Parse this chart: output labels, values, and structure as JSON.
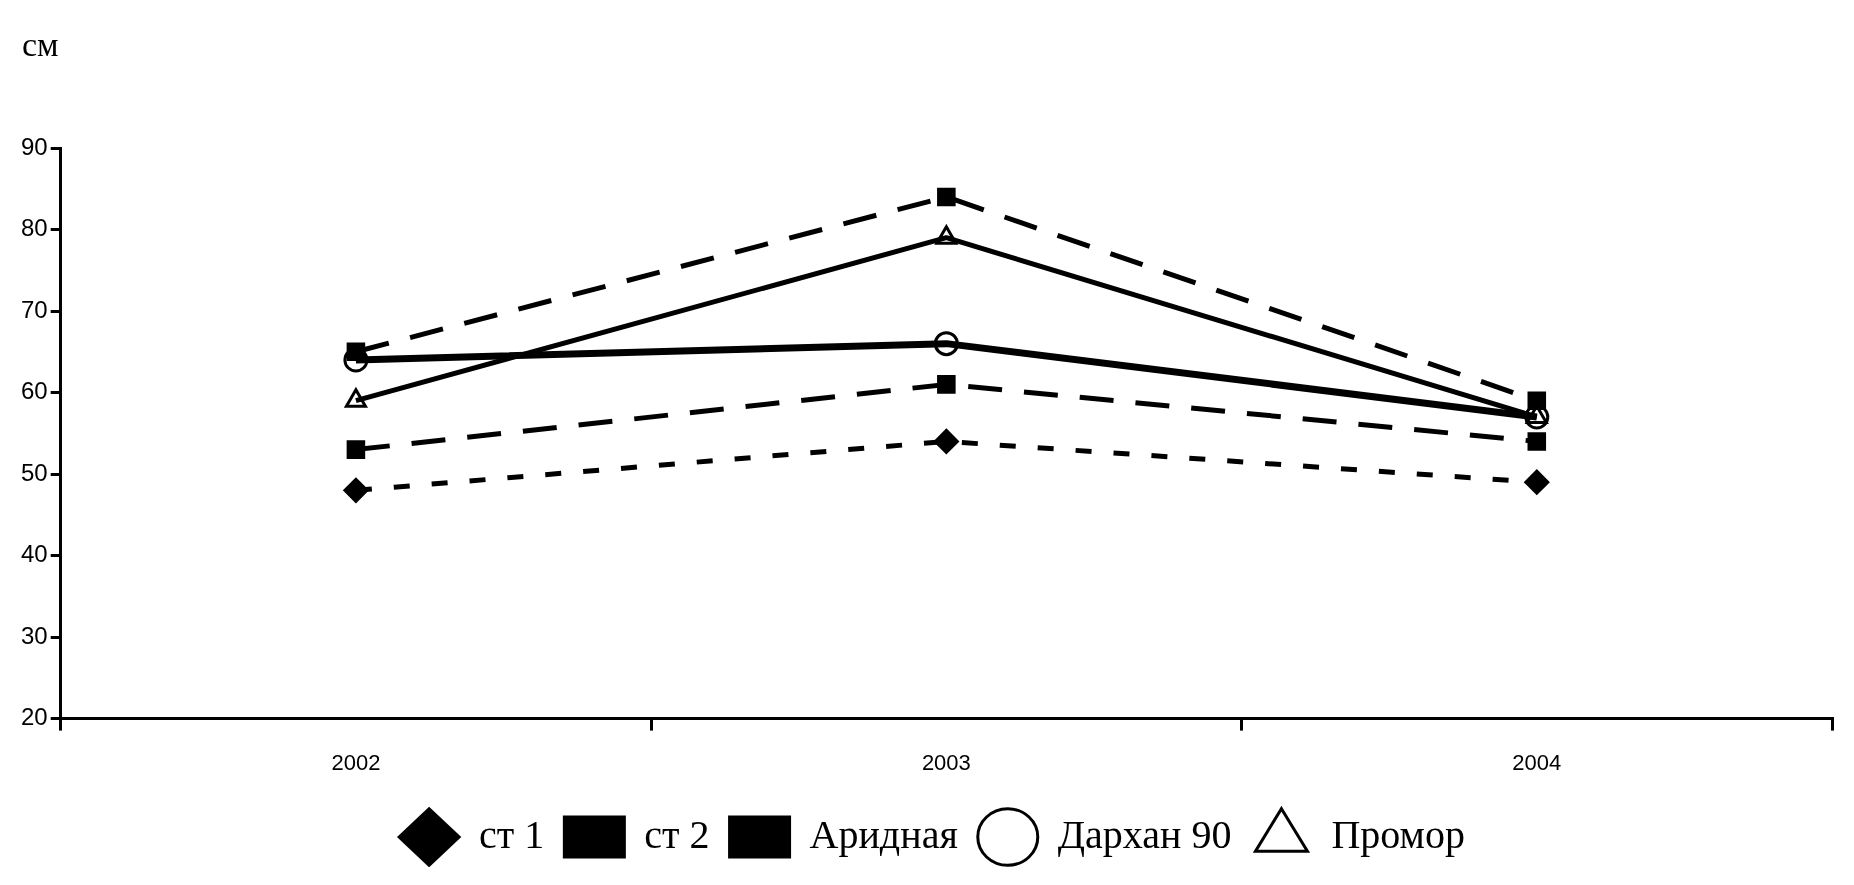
{
  "chart_data": {
    "type": "line",
    "ylabel": "см",
    "categories": [
      "2002",
      "2003",
      "2004"
    ],
    "series": [
      {
        "name": "ст 1",
        "color": "#000000",
        "values": [
          48,
          54,
          49
        ],
        "marker": "diamond",
        "line_style": "dotted"
      },
      {
        "name": "ст 2",
        "color": "#000000",
        "values": [
          53,
          61,
          54
        ],
        "marker": "square",
        "line_style": "dashed"
      },
      {
        "name": "Аридная",
        "color": "#000000",
        "values": [
          65,
          84,
          59
        ],
        "marker": "square",
        "line_style": "dashed"
      },
      {
        "name": "Дархан 90",
        "color": "#000000",
        "values": [
          64,
          66,
          57
        ],
        "marker": "circle",
        "line_style": "solid"
      },
      {
        "name": "Промор",
        "color": "#000000",
        "values": [
          59,
          79,
          57
        ],
        "marker": "triangle",
        "line_style": "solid"
      }
    ],
    "ylim": [
      20,
      90
    ],
    "yticks": [
      20,
      30,
      40,
      50,
      60,
      70,
      80,
      90
    ],
    "grid": false,
    "legend": "bottom"
  }
}
